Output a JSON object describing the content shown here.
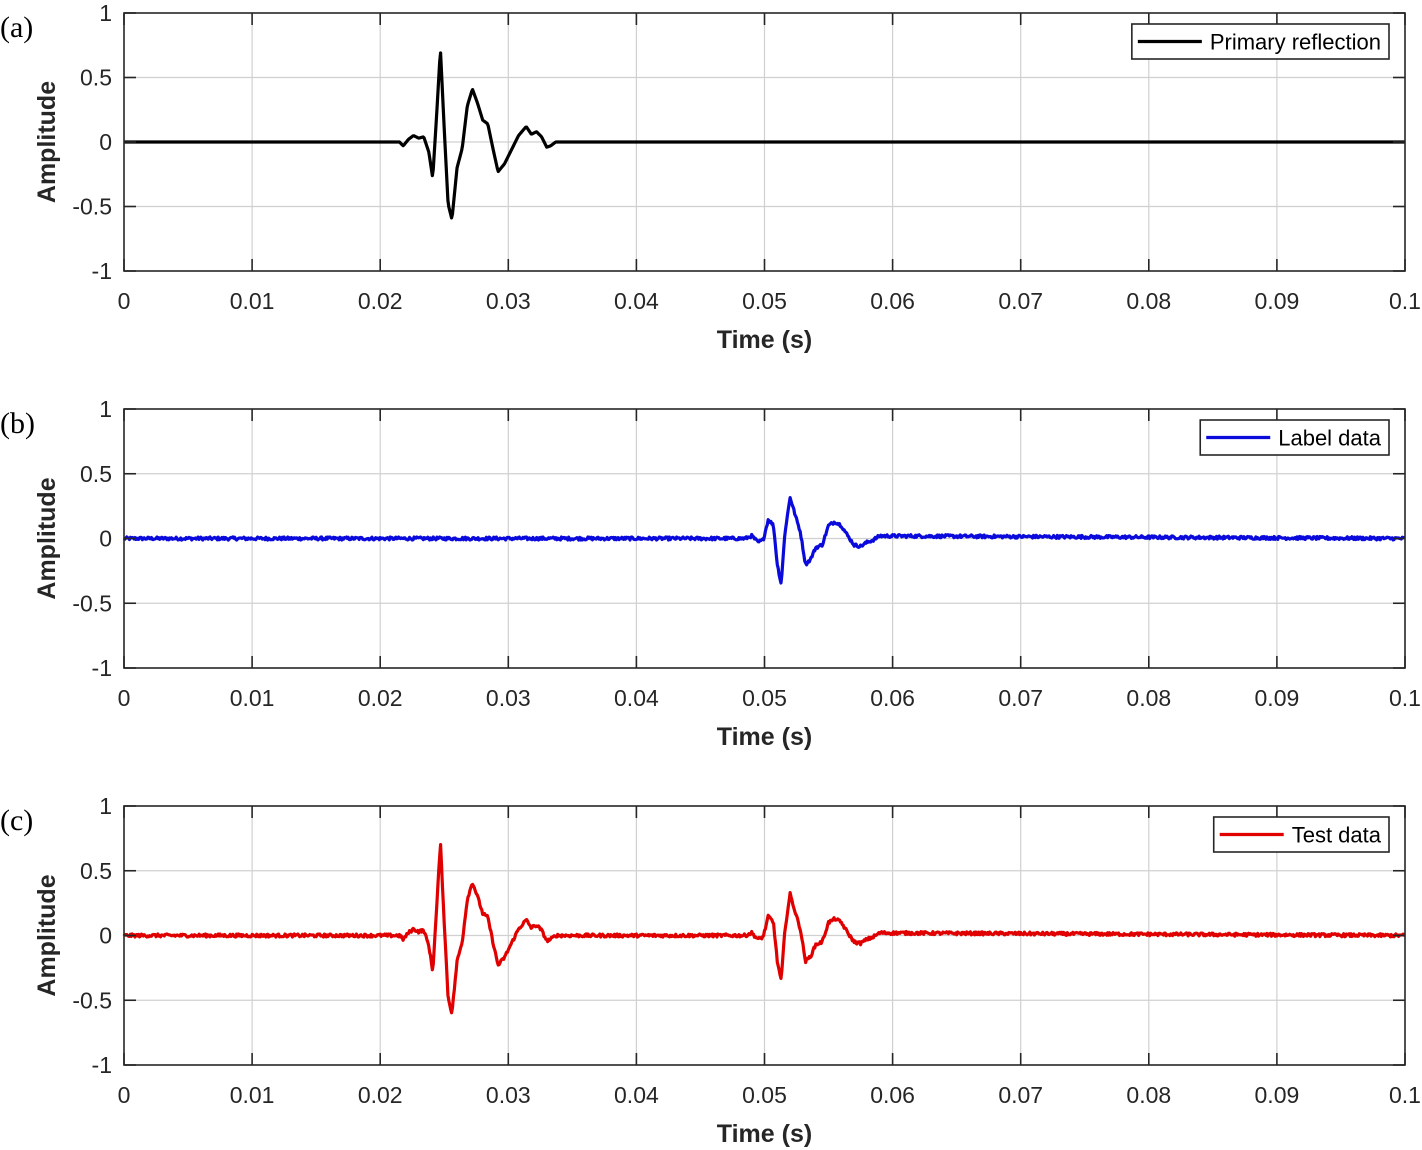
{
  "chart_data": [
    {
      "type": "line",
      "panel_label": "(a)",
      "xlabel": "Time (s)",
      "ylabel": "Amplitude",
      "xlim": [
        0,
        0.1
      ],
      "ylim": [
        -1,
        1
      ],
      "xticks": [
        0,
        0.01,
        0.02,
        0.03,
        0.04,
        0.05,
        0.06,
        0.07,
        0.08,
        0.09,
        0.1
      ],
      "xtick_labels": [
        "0",
        "0.01",
        "0.02",
        "0.03",
        "0.04",
        "0.05",
        "0.06",
        "0.07",
        "0.08",
        "0.09",
        "0.1"
      ],
      "yticks": [
        1,
        0.5,
        0,
        -0.5,
        -1
      ],
      "ytick_labels": [
        "1",
        "0.5",
        "0",
        "-0.5",
        "-1"
      ],
      "grid": true,
      "legend_position": "top-right",
      "series": [
        {
          "name": "Primary reflection",
          "color": "#000000",
          "noise": 0,
          "x": [
            0,
            0.0215,
            0.0218,
            0.0222,
            0.0226,
            0.023,
            0.0234,
            0.0238,
            0.0241,
            0.0244,
            0.0247,
            0.025,
            0.0253,
            0.0256,
            0.026,
            0.0264,
            0.0268,
            0.0272,
            0.0276,
            0.028,
            0.0284,
            0.0288,
            0.0292,
            0.0297,
            0.0302,
            0.0308,
            0.0314,
            0.0318,
            0.0322,
            0.0326,
            0.033,
            0.0333,
            0.0337,
            0.1
          ],
          "y": [
            0,
            0,
            -0.03,
            0.02,
            0.05,
            0.03,
            0.04,
            -0.08,
            -0.28,
            0.2,
            0.72,
            0.1,
            -0.48,
            -0.6,
            -0.2,
            -0.05,
            0.28,
            0.41,
            0.3,
            0.17,
            0.14,
            -0.05,
            -0.23,
            -0.17,
            -0.07,
            0.05,
            0.12,
            0.06,
            0.08,
            0.04,
            -0.04,
            -0.03,
            0,
            0
          ]
        }
      ]
    },
    {
      "type": "line",
      "panel_label": "(b)",
      "xlabel": "Time (s)",
      "ylabel": "Amplitude",
      "xlim": [
        0,
        0.1
      ],
      "ylim": [
        -1,
        1
      ],
      "xticks": [
        0,
        0.01,
        0.02,
        0.03,
        0.04,
        0.05,
        0.06,
        0.07,
        0.08,
        0.09,
        0.1
      ],
      "xtick_labels": [
        "0",
        "0.01",
        "0.02",
        "0.03",
        "0.04",
        "0.05",
        "0.06",
        "0.07",
        "0.08",
        "0.09",
        "0.1"
      ],
      "yticks": [
        1,
        0.5,
        0,
        -0.5,
        -1
      ],
      "ytick_labels": [
        "1",
        "0.5",
        "0",
        "-0.5",
        "-1"
      ],
      "grid": true,
      "legend_position": "top-right",
      "series": [
        {
          "name": "Label data",
          "color": "#0a0adc",
          "noise": 0.012,
          "x": [
            0,
            0.0485,
            0.049,
            0.0495,
            0.0499,
            0.0503,
            0.0507,
            0.051,
            0.0513,
            0.0516,
            0.052,
            0.0524,
            0.0528,
            0.0532,
            0.0536,
            0.054,
            0.0545,
            0.055,
            0.0555,
            0.056,
            0.0565,
            0.057,
            0.0575,
            0.058,
            0.0585,
            0.059,
            0.1
          ],
          "y": [
            0,
            0,
            0.02,
            -0.03,
            -0.01,
            0.15,
            0.1,
            -0.2,
            -0.35,
            0.05,
            0.32,
            0.18,
            0.05,
            -0.2,
            -0.16,
            -0.07,
            -0.05,
            0.1,
            0.13,
            0.1,
            0.02,
            -0.05,
            -0.06,
            -0.03,
            -0.01,
            0.02,
            0
          ]
        }
      ]
    },
    {
      "type": "line",
      "panel_label": "(c)",
      "xlabel": "Time (s)",
      "ylabel": "Amplitude",
      "xlim": [
        0,
        0.1
      ],
      "ylim": [
        -1,
        1
      ],
      "xticks": [
        0,
        0.01,
        0.02,
        0.03,
        0.04,
        0.05,
        0.06,
        0.07,
        0.08,
        0.09,
        0.1
      ],
      "xtick_labels": [
        "0",
        "0.01",
        "0.02",
        "0.03",
        "0.04",
        "0.05",
        "0.06",
        "0.07",
        "0.08",
        "0.09",
        "0.1"
      ],
      "yticks": [
        1,
        0.5,
        0,
        -0.5,
        -1
      ],
      "ytick_labels": [
        "1",
        "0.5",
        "0",
        "-0.5",
        "-1"
      ],
      "grid": true,
      "legend_position": "top-right",
      "series": [
        {
          "name": "Test data",
          "color": "#e00000",
          "noise": 0.012,
          "x": [
            0,
            0.0215,
            0.0218,
            0.0222,
            0.0226,
            0.023,
            0.0234,
            0.0238,
            0.0241,
            0.0244,
            0.0247,
            0.025,
            0.0253,
            0.0256,
            0.026,
            0.0264,
            0.0268,
            0.0272,
            0.0276,
            0.028,
            0.0284,
            0.0288,
            0.0292,
            0.0297,
            0.0302,
            0.0308,
            0.0314,
            0.0318,
            0.0322,
            0.0326,
            0.033,
            0.0333,
            0.0337,
            0.0485,
            0.049,
            0.0495,
            0.0499,
            0.0503,
            0.0507,
            0.051,
            0.0513,
            0.0516,
            0.052,
            0.0524,
            0.0528,
            0.0532,
            0.0536,
            0.054,
            0.0545,
            0.055,
            0.0555,
            0.056,
            0.0565,
            0.057,
            0.0575,
            0.058,
            0.0585,
            0.059,
            0.1
          ],
          "y": [
            0,
            0,
            -0.03,
            0.02,
            0.05,
            0.03,
            0.04,
            -0.08,
            -0.28,
            0.2,
            0.72,
            0.1,
            -0.48,
            -0.6,
            -0.2,
            -0.05,
            0.28,
            0.41,
            0.3,
            0.17,
            0.14,
            -0.05,
            -0.23,
            -0.17,
            -0.07,
            0.05,
            0.12,
            0.06,
            0.08,
            0.04,
            -0.04,
            -0.03,
            0,
            0,
            0.02,
            -0.03,
            -0.01,
            0.15,
            0.1,
            -0.2,
            -0.35,
            0.05,
            0.32,
            0.18,
            0.05,
            -0.2,
            -0.16,
            -0.07,
            -0.05,
            0.1,
            0.13,
            0.1,
            0.02,
            -0.05,
            -0.06,
            -0.03,
            -0.01,
            0.02,
            0
          ]
        }
      ]
    }
  ]
}
